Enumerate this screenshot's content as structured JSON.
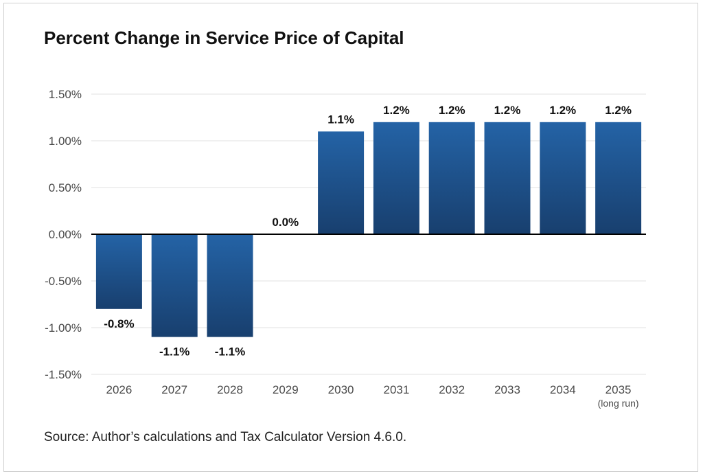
{
  "title": "Percent Change in Service Price of Capital",
  "source": "Source: Author’s calculations and Tax Calculator Version 4.6.0.",
  "colors": {
    "bar_top": "#2463a6",
    "bar_bottom": "#183f6e",
    "grid": "#e0e0e0",
    "zero_line": "#000000"
  },
  "chart_data": {
    "type": "bar",
    "title": "Percent Change in Service Price of Capital",
    "categories": [
      "2026",
      "2027",
      "2028",
      "2029",
      "2030",
      "2031",
      "2032",
      "2033",
      "2034",
      "2035"
    ],
    "category_sublabels": [
      "",
      "",
      "",
      "",
      "",
      "",
      "",
      "",
      "",
      "(long run)"
    ],
    "values": [
      -0.8,
      -1.1,
      -1.1,
      0.0,
      1.1,
      1.2,
      1.2,
      1.2,
      1.2,
      1.2
    ],
    "data_labels": [
      "-0.8%",
      "-1.1%",
      "-1.1%",
      "0.0%",
      "1.1%",
      "1.2%",
      "1.2%",
      "1.2%",
      "1.2%",
      "1.2%"
    ],
    "yticks": [
      1.5,
      1.0,
      0.5,
      0.0,
      -0.5,
      -1.0,
      -1.5
    ],
    "ytick_labels": [
      "1.50%",
      "1.00%",
      "0.50%",
      "0.00%",
      "-0.50%",
      "-1.00%",
      "-1.50%"
    ],
    "ylim": [
      -1.5,
      1.5
    ],
    "grid": true,
    "xlabel": "",
    "ylabel": ""
  }
}
